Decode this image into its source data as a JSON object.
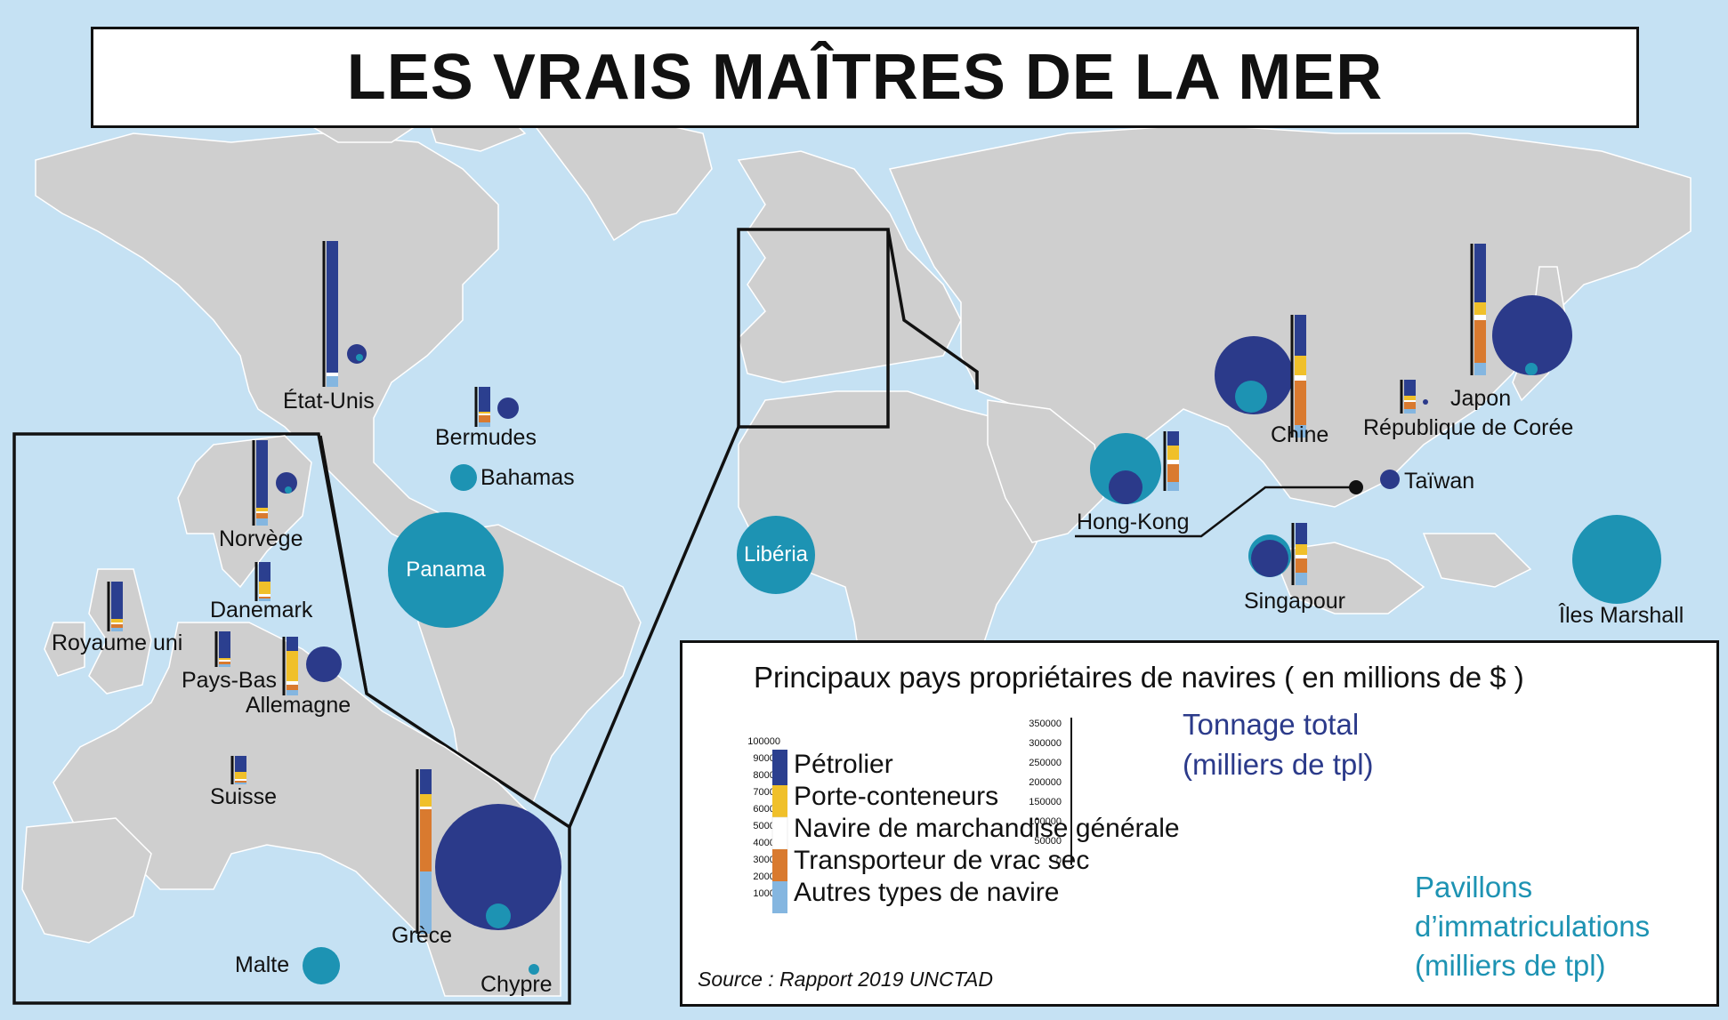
{
  "title": "LES VRAIS MAÎTRES DE LA MER",
  "colors": {
    "ocean": "#c5e1f3",
    "land": "#cfcfcf",
    "tonnage": "#2b3a8a",
    "flags": "#1d93b3",
    "petrolier": "#2b3f8f",
    "porte_conteneurs": "#f0c02a",
    "marchandise_generale": "#ffffff",
    "vrac_sec": "#d97a2f",
    "autres": "#84b6e0"
  },
  "places": {
    "etats_unis": "État-Unis",
    "bermudes": "Bermudes",
    "bahamas": "Bahamas",
    "panama": "Panama",
    "liberia": "Libéria",
    "hong_kong": "Hong-Kong",
    "chine": "Chine",
    "japon": "Japon",
    "coree": "République de Corée",
    "taiwan": "Taïwan",
    "singapour": "Singapour",
    "marshall": "Îles Marshall",
    "norvege": "Norvège",
    "danemark": "Danemark",
    "royaume_uni": "Royaume uni",
    "pays_bas": "Pays-Bas",
    "allemagne": "Allemagne",
    "suisse": "Suisse",
    "grece": "Grèce",
    "malte": "Malte",
    "chypre": "Chypre"
  },
  "legend": {
    "title": "Principaux pays propriétaires de navires ( en millions de $ )",
    "items": [
      "Pétrolier",
      "Porte-conteneurs",
      "Navire de marchandise générale",
      "Transporteur de vrac sec",
      "Autres types de navire"
    ],
    "bar_ticks": [
      "100000",
      "90000",
      "80000",
      "70000",
      "60000",
      "50000",
      "40000",
      "30000",
      "20000",
      "10000",
      "0"
    ],
    "circle_ticks": [
      "350000",
      "300000",
      "250000",
      "200000",
      "150000",
      "100000",
      "50000",
      "0"
    ],
    "tonnage_label": "Tonnage total",
    "tonnage_unit": "(milliers de tpl)",
    "flags_label": "Pavillons",
    "flags_label2": "d’immatriculations",
    "flags_unit": "(milliers de tpl)",
    "source": "Source : Rapport 2019 UNCTAD"
  }
}
